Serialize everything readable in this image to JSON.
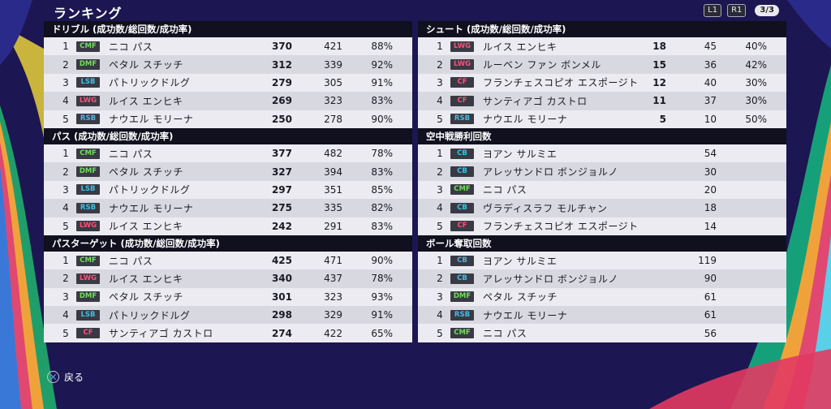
{
  "header": {
    "title": "ランキング",
    "buttons": [
      "L1",
      "R1"
    ],
    "page": "3/3"
  },
  "footer": {
    "back_label": "戻る"
  },
  "position_colors": {
    "CMF": "#6fe05a",
    "DMF": "#6fe05a",
    "LSB": "#3fbfe8",
    "RSB": "#3fbfe8",
    "CB": "#3fbfe8",
    "LWG": "#ff4f7a",
    "CF": "#ff4f7a"
  },
  "left": [
    {
      "title": "ドリブル (成功数/総回数/成功率)",
      "rows": [
        {
          "rank": "1",
          "pos": "CMF",
          "name": "ニコ パス",
          "v1": "370",
          "v2": "421",
          "v3": "88%"
        },
        {
          "rank": "2",
          "pos": "DMF",
          "name": "ペタル スチッチ",
          "v1": "312",
          "v2": "339",
          "v3": "92%"
        },
        {
          "rank": "3",
          "pos": "LSB",
          "name": "パトリックドルグ",
          "v1": "279",
          "v2": "305",
          "v3": "91%"
        },
        {
          "rank": "4",
          "pos": "LWG",
          "name": "ルイス エンヒキ",
          "v1": "269",
          "v2": "323",
          "v3": "83%"
        },
        {
          "rank": "5",
          "pos": "RSB",
          "name": "ナウエル モリーナ",
          "v1": "250",
          "v2": "278",
          "v3": "90%"
        }
      ]
    },
    {
      "title": "パス (成功数/総回数/成功率)",
      "rows": [
        {
          "rank": "1",
          "pos": "CMF",
          "name": "ニコ パス",
          "v1": "377",
          "v2": "482",
          "v3": "78%"
        },
        {
          "rank": "2",
          "pos": "DMF",
          "name": "ペタル スチッチ",
          "v1": "327",
          "v2": "394",
          "v3": "83%"
        },
        {
          "rank": "3",
          "pos": "LSB",
          "name": "パトリックドルグ",
          "v1": "297",
          "v2": "351",
          "v3": "85%"
        },
        {
          "rank": "4",
          "pos": "RSB",
          "name": "ナウエル モリーナ",
          "v1": "275",
          "v2": "335",
          "v3": "82%"
        },
        {
          "rank": "5",
          "pos": "LWG",
          "name": "ルイス エンヒキ",
          "v1": "242",
          "v2": "291",
          "v3": "83%"
        }
      ]
    },
    {
      "title": "パスターゲット (成功数/総回数/成功率)",
      "rows": [
        {
          "rank": "1",
          "pos": "CMF",
          "name": "ニコ パス",
          "v1": "425",
          "v2": "471",
          "v3": "90%"
        },
        {
          "rank": "2",
          "pos": "LWG",
          "name": "ルイス エンヒキ",
          "v1": "340",
          "v2": "437",
          "v3": "78%"
        },
        {
          "rank": "3",
          "pos": "DMF",
          "name": "ペタル スチッチ",
          "v1": "301",
          "v2": "323",
          "v3": "93%"
        },
        {
          "rank": "4",
          "pos": "LSB",
          "name": "パトリックドルグ",
          "v1": "298",
          "v2": "329",
          "v3": "91%"
        },
        {
          "rank": "5",
          "pos": "CF",
          "name": "サンティアゴ カストロ",
          "v1": "274",
          "v2": "422",
          "v3": "65%"
        }
      ]
    }
  ],
  "right": [
    {
      "title": "シュート (成功数/総回数/成功率)",
      "rows": [
        {
          "rank": "1",
          "pos": "LWG",
          "name": "ルイス エンヒキ",
          "v1": "18",
          "v2": "45",
          "v3": "40%"
        },
        {
          "rank": "2",
          "pos": "LWG",
          "name": "ルーベン ファン ボンメル",
          "v1": "15",
          "v2": "36",
          "v3": "42%"
        },
        {
          "rank": "3",
          "pos": "CF",
          "name": "フランチェスコピオ エスポージト",
          "v1": "12",
          "v2": "40",
          "v3": "30%"
        },
        {
          "rank": "4",
          "pos": "CF",
          "name": "サンティアゴ カストロ",
          "v1": "11",
          "v2": "37",
          "v3": "30%"
        },
        {
          "rank": "5",
          "pos": "RSB",
          "name": "ナウエル モリーナ",
          "v1": "5",
          "v2": "10",
          "v3": "50%"
        }
      ]
    },
    {
      "title": "空中戦勝利回数",
      "rows": [
        {
          "rank": "1",
          "pos": "CB",
          "name": "ヨアン サルミエ",
          "v1": "",
          "v2": "54",
          "v3": ""
        },
        {
          "rank": "2",
          "pos": "CB",
          "name": "アレッサンドロ ボンジョルノ",
          "v1": "",
          "v2": "30",
          "v3": ""
        },
        {
          "rank": "3",
          "pos": "CMF",
          "name": "ニコ パス",
          "v1": "",
          "v2": "20",
          "v3": ""
        },
        {
          "rank": "4",
          "pos": "CB",
          "name": "ヴラディスラフ モルチャン",
          "v1": "",
          "v2": "18",
          "v3": ""
        },
        {
          "rank": "5",
          "pos": "CF",
          "name": "フランチェスコピオ エスポージト",
          "v1": "",
          "v2": "14",
          "v3": ""
        }
      ]
    },
    {
      "title": "ボール奪取回数",
      "rows": [
        {
          "rank": "1",
          "pos": "CB",
          "name": "ヨアン サルミエ",
          "v1": "",
          "v2": "119",
          "v3": ""
        },
        {
          "rank": "2",
          "pos": "CB",
          "name": "アレッサンドロ ボンジョルノ",
          "v1": "",
          "v2": "90",
          "v3": ""
        },
        {
          "rank": "3",
          "pos": "DMF",
          "name": "ペタル スチッチ",
          "v1": "",
          "v2": "61",
          "v3": ""
        },
        {
          "rank": "4",
          "pos": "RSB",
          "name": "ナウエル モリーナ",
          "v1": "",
          "v2": "61",
          "v3": ""
        },
        {
          "rank": "5",
          "pos": "CMF",
          "name": "ニコ パス",
          "v1": "",
          "v2": "56",
          "v3": ""
        }
      ]
    }
  ]
}
